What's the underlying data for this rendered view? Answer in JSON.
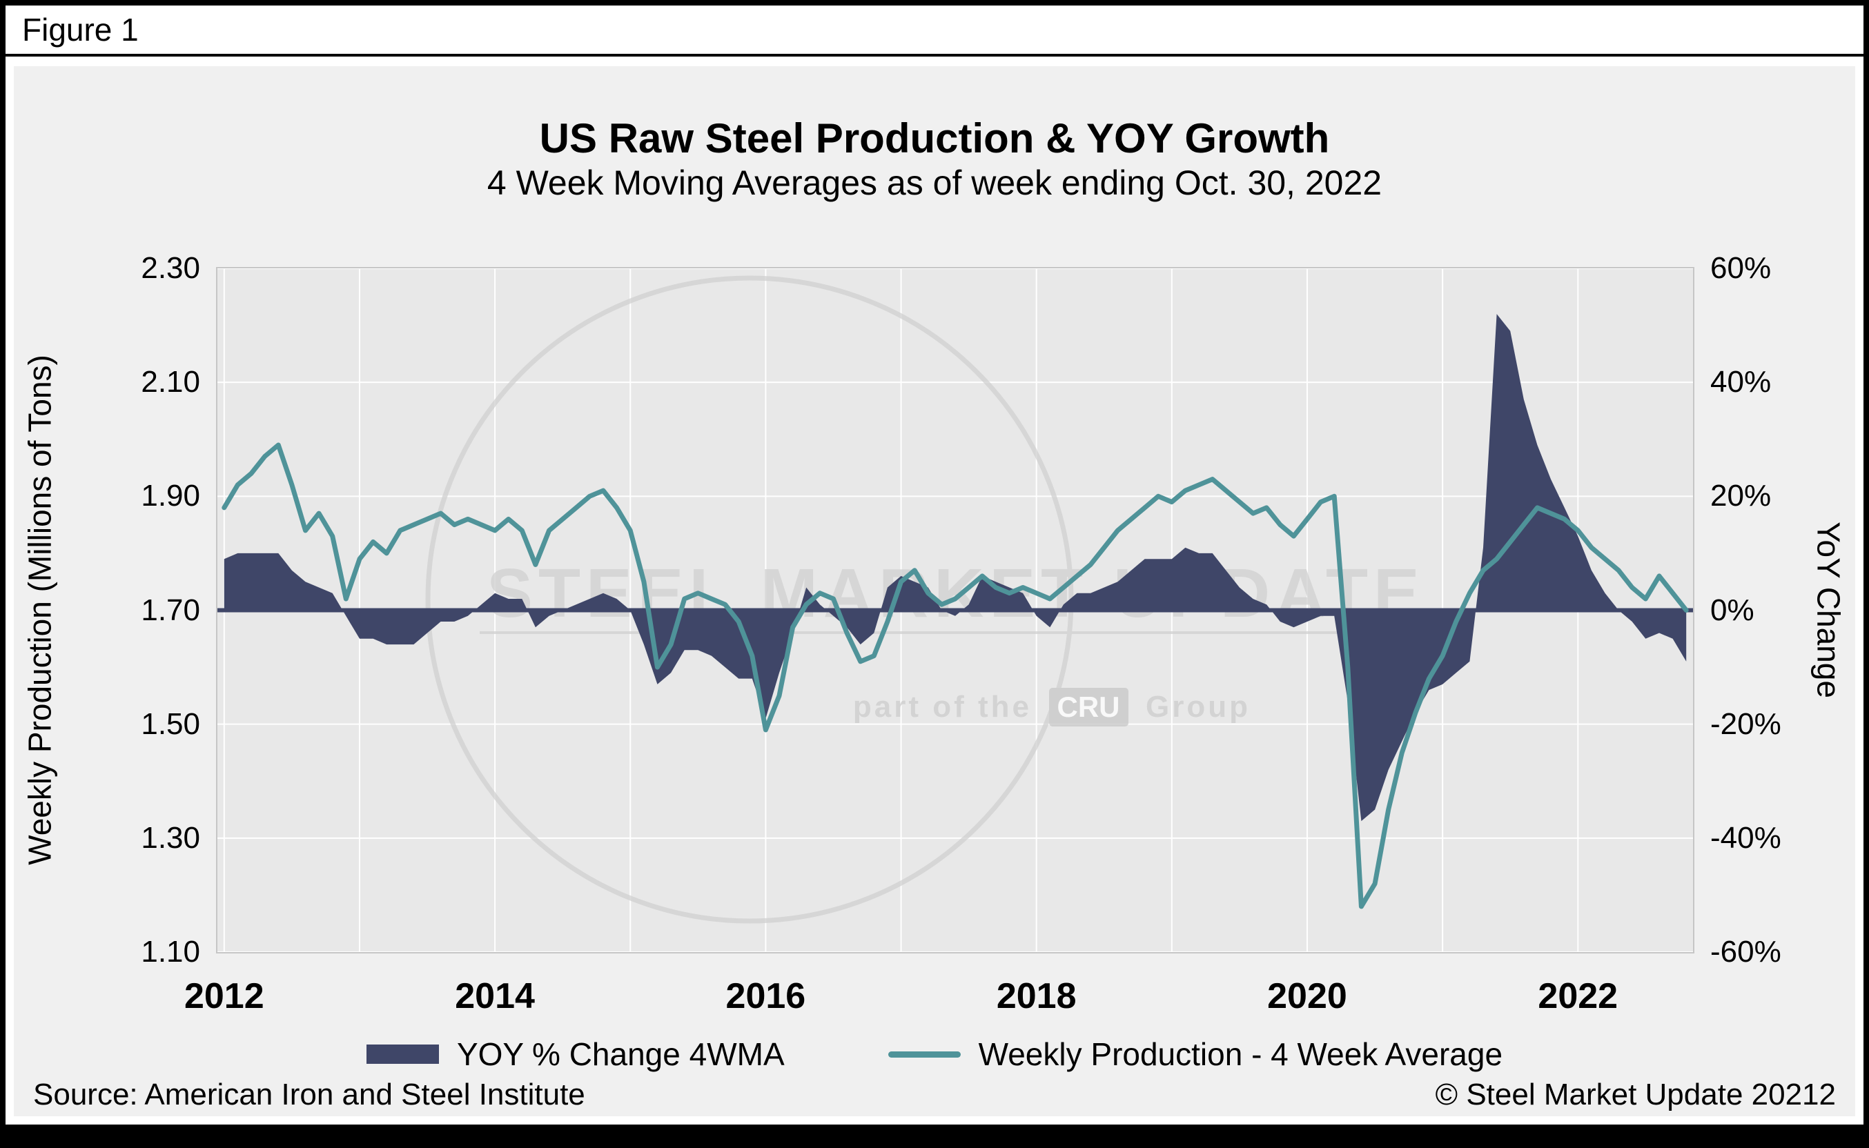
{
  "figure_label": "Figure 1",
  "title": "US Raw Steel Production & YOY Growth",
  "subtitle": "4 Week Moving Averages as of week ending Oct. 30, 2022",
  "left_axis": {
    "title": "Weekly Production (Millions of Tons)",
    "ticks": [
      "2.30",
      "2.10",
      "1.90",
      "1.70",
      "1.50",
      "1.30",
      "1.10"
    ]
  },
  "right_axis": {
    "title": "YoY Change",
    "ticks": [
      "60%",
      "40%",
      "20%",
      "0%",
      "-20%",
      "-40%",
      "-60%"
    ]
  },
  "x_axis": {
    "ticks": [
      "2012",
      "2014",
      "2016",
      "2018",
      "2020",
      "2022"
    ],
    "tick_years": [
      2012,
      2014,
      2016,
      2018,
      2020,
      2022
    ]
  },
  "legend": {
    "items": [
      {
        "label": "YOY % Change 4WMA",
        "type": "area",
        "color": "#3f4668"
      },
      {
        "label": "Weekly Production - 4 Week Average",
        "type": "line",
        "color": "#4f9399"
      }
    ]
  },
  "watermark": {
    "line1": "STEEL MARKET UPDATE",
    "line2_prefix": "part of the",
    "line2_box": "CRU",
    "line2_suffix": "Group"
  },
  "footer": {
    "source": "Source: American Iron and Steel Institute",
    "copyright": "© Steel Market Update 20212"
  },
  "colors": {
    "yoy_area": "#3f4668",
    "production_line": "#4f9399",
    "zero_line": "#3f4668",
    "panel_bg": "#f0f0f0",
    "plot_bg": "#e8e8e8",
    "gridline": "#ffffff",
    "watermark": "#d0d0d0"
  },
  "chart_data": {
    "type": "line",
    "title": "US Raw Steel Production & YOY Growth",
    "subtitle": "4 Week Moving Averages as of week ending Oct. 30, 2022",
    "x_unit": "year",
    "x_start": 2012.0,
    "x_step": 0.1,
    "xlim": [
      2011.95,
      2022.85
    ],
    "left_axis_label": "Weekly Production (Millions of Tons)",
    "left_ylim": [
      1.1,
      2.3
    ],
    "right_axis_label": "YoY Change",
    "right_ylim": [
      -60,
      60
    ],
    "grid": true,
    "legend_position": "bottom",
    "series": [
      {
        "name": "YOY % Change 4WMA",
        "type": "area",
        "axis": "right",
        "unit": "%",
        "color": "#3f4668",
        "values": [
          9,
          10,
          10,
          10,
          10,
          7,
          5,
          4,
          3,
          -1,
          -5,
          -5,
          -6,
          -6,
          -6,
          -4,
          -2,
          -2,
          -1,
          1,
          3,
          2,
          2,
          -3,
          -1,
          0,
          1,
          2,
          3,
          2,
          0,
          -6,
          -13,
          -11,
          -7,
          -7,
          -8,
          -10,
          -12,
          -12,
          -19,
          -11,
          -4,
          4,
          1,
          -1,
          -3,
          -6,
          -4,
          4,
          6,
          5,
          4,
          0,
          -1,
          1,
          6,
          5,
          4,
          3,
          -1,
          -3,
          1,
          3,
          3,
          4,
          5,
          7,
          9,
          9,
          9,
          11,
          10,
          10,
          7,
          4,
          2,
          1,
          -2,
          -3,
          -2,
          -1,
          -1,
          -16,
          -37,
          -35,
          -28,
          -23,
          -18,
          -14,
          -13,
          -11,
          -9,
          11,
          52,
          49,
          37,
          29,
          23,
          18,
          13,
          7,
          3,
          0,
          -2,
          -5,
          -4,
          -5,
          -9
        ]
      },
      {
        "name": "Weekly Production - 4 Week Average",
        "type": "line",
        "axis": "left",
        "unit": "millions of tons",
        "color": "#4f9399",
        "values": [
          1.88,
          1.92,
          1.94,
          1.97,
          1.99,
          1.92,
          1.84,
          1.87,
          1.83,
          1.72,
          1.79,
          1.82,
          1.8,
          1.84,
          1.85,
          1.86,
          1.87,
          1.85,
          1.86,
          1.85,
          1.84,
          1.86,
          1.84,
          1.78,
          1.84,
          1.86,
          1.88,
          1.9,
          1.91,
          1.88,
          1.84,
          1.75,
          1.6,
          1.64,
          1.72,
          1.73,
          1.72,
          1.71,
          1.68,
          1.62,
          1.49,
          1.55,
          1.67,
          1.71,
          1.73,
          1.72,
          1.66,
          1.61,
          1.62,
          1.68,
          1.75,
          1.77,
          1.73,
          1.71,
          1.72,
          1.74,
          1.76,
          1.74,
          1.73,
          1.74,
          1.73,
          1.72,
          1.74,
          1.76,
          1.78,
          1.81,
          1.84,
          1.86,
          1.88,
          1.9,
          1.89,
          1.91,
          1.92,
          1.93,
          1.91,
          1.89,
          1.87,
          1.88,
          1.85,
          1.83,
          1.86,
          1.89,
          1.9,
          1.6,
          1.18,
          1.22,
          1.35,
          1.45,
          1.52,
          1.58,
          1.62,
          1.68,
          1.73,
          1.77,
          1.79,
          1.82,
          1.85,
          1.88,
          1.87,
          1.86,
          1.84,
          1.81,
          1.79,
          1.77,
          1.74,
          1.72,
          1.76,
          1.73,
          1.7
        ]
      }
    ]
  }
}
